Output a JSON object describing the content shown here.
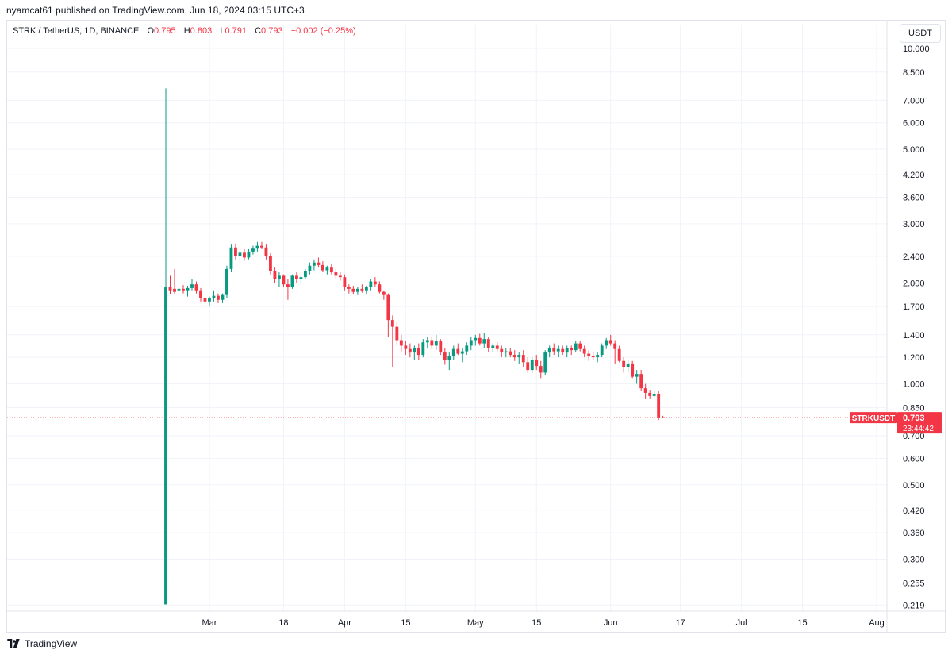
{
  "header": {
    "published": "nyamcat61 published on TradingView.com, Jun 18, 2024 03:15 UTC+3"
  },
  "legend": {
    "symbol": "STRK / TetherUS, 1D, BINANCE",
    "o_label": "O",
    "o_value": "0.795",
    "h_label": "H",
    "h_value": "0.803",
    "l_label": "L",
    "l_value": "0.791",
    "c_label": "C",
    "c_value": "0.793",
    "change": "−0.002 (−0.25%)"
  },
  "currency_button": "USDT",
  "price_tag": {
    "symbol": "STRKUSDT",
    "price": "0.793",
    "countdown": "23:44:42"
  },
  "footer": {
    "brand": "TradingView"
  },
  "colors": {
    "up": "#089981",
    "down": "#f23645",
    "grid": "#f0f3fa",
    "text": "#131722"
  },
  "chart_data": {
    "type": "candlestick",
    "y_scale": "log",
    "ylim": [
      0.21,
      10.5
    ],
    "grid": true,
    "y_ticks": [
      "10.000",
      "8.500",
      "7.000",
      "6.000",
      "5.000",
      "4.200",
      "3.600",
      "3.000",
      "2.400",
      "2.000",
      "1.700",
      "1.400",
      "1.200",
      "1.000",
      "0.850",
      "0.700",
      "0.600",
      "0.500",
      "0.420",
      "0.360",
      "0.300",
      "0.255",
      "0.219"
    ],
    "x_ticks": [
      {
        "label": "Mar",
        "date": "2024-03-01"
      },
      {
        "label": "18",
        "date": "2024-03-18"
      },
      {
        "label": "Apr",
        "date": "2024-04-01"
      },
      {
        "label": "15",
        "date": "2024-04-15"
      },
      {
        "label": "May",
        "date": "2024-05-01"
      },
      {
        "label": "15",
        "date": "2024-05-15"
      },
      {
        "label": "Jun",
        "date": "2024-06-01"
      },
      {
        "label": "17",
        "date": "2024-06-17"
      },
      {
        "label": "Jul",
        "date": "2024-07-01"
      },
      {
        "label": "15",
        "date": "2024-07-15"
      },
      {
        "label": "Aug",
        "date": "2024-08-01"
      }
    ],
    "first_date": "2024-02-20",
    "x_end_date": "2024-08-03",
    "candles": [
      [
        0.22,
        7.6,
        0.22,
        1.95
      ],
      [
        1.95,
        2.1,
        1.85,
        1.9
      ],
      [
        1.92,
        2.2,
        1.86,
        1.88
      ],
      [
        1.9,
        2.0,
        1.83,
        1.92
      ],
      [
        1.92,
        1.97,
        1.86,
        1.9
      ],
      [
        1.9,
        1.96,
        1.82,
        1.93
      ],
      [
        1.93,
        2.05,
        1.9,
        1.98
      ],
      [
        1.98,
        2.02,
        1.86,
        1.9
      ],
      [
        1.9,
        1.93,
        1.76,
        1.8
      ],
      [
        1.8,
        1.86,
        1.7,
        1.76
      ],
      [
        1.76,
        1.82,
        1.7,
        1.8
      ],
      [
        1.8,
        1.9,
        1.76,
        1.83
      ],
      [
        1.83,
        1.86,
        1.74,
        1.78
      ],
      [
        1.78,
        1.86,
        1.74,
        1.84
      ],
      [
        1.84,
        2.25,
        1.8,
        2.2
      ],
      [
        2.2,
        2.6,
        2.15,
        2.55
      ],
      [
        2.55,
        2.62,
        2.35,
        2.4
      ],
      [
        2.4,
        2.5,
        2.3,
        2.46
      ],
      [
        2.46,
        2.52,
        2.33,
        2.38
      ],
      [
        2.38,
        2.52,
        2.35,
        2.48
      ],
      [
        2.48,
        2.58,
        2.43,
        2.53
      ],
      [
        2.53,
        2.65,
        2.48,
        2.58
      ],
      [
        2.58,
        2.65,
        2.52,
        2.55
      ],
      [
        2.55,
        2.6,
        2.35,
        2.4
      ],
      [
        2.4,
        2.45,
        2.12,
        2.17
      ],
      [
        2.17,
        2.22,
        2.0,
        2.05
      ],
      [
        2.05,
        2.15,
        1.95,
        2.1
      ],
      [
        2.1,
        2.12,
        1.95,
        1.98
      ],
      [
        1.98,
        2.05,
        1.78,
        1.95
      ],
      [
        1.95,
        2.12,
        1.92,
        2.1
      ],
      [
        2.1,
        2.15,
        2.0,
        2.05
      ],
      [
        2.05,
        2.12,
        1.98,
        2.08
      ],
      [
        2.08,
        2.2,
        2.05,
        2.17
      ],
      [
        2.17,
        2.3,
        2.12,
        2.25
      ],
      [
        2.25,
        2.35,
        2.18,
        2.3
      ],
      [
        2.3,
        2.38,
        2.22,
        2.26
      ],
      [
        2.26,
        2.32,
        2.15,
        2.18
      ],
      [
        2.18,
        2.25,
        2.12,
        2.22
      ],
      [
        2.22,
        2.28,
        2.12,
        2.15
      ],
      [
        2.15,
        2.2,
        2.05,
        2.1
      ],
      [
        2.1,
        2.15,
        2.03,
        2.08
      ],
      [
        2.08,
        2.12,
        1.9,
        1.94
      ],
      [
        1.94,
        1.98,
        1.86,
        1.92
      ],
      [
        1.92,
        1.96,
        1.85,
        1.88
      ],
      [
        1.88,
        1.94,
        1.84,
        1.92
      ],
      [
        1.92,
        1.98,
        1.87,
        1.9
      ],
      [
        1.9,
        1.96,
        1.85,
        1.94
      ],
      [
        1.94,
        2.05,
        1.9,
        2.02
      ],
      [
        2.02,
        2.08,
        1.95,
        1.98
      ],
      [
        1.98,
        2.02,
        1.86,
        1.88
      ],
      [
        1.88,
        1.9,
        1.78,
        1.84
      ],
      [
        1.84,
        1.86,
        1.38,
        1.55
      ],
      [
        1.55,
        1.6,
        1.12,
        1.48
      ],
      [
        1.48,
        1.53,
        1.3,
        1.35
      ],
      [
        1.35,
        1.4,
        1.25,
        1.3
      ],
      [
        1.3,
        1.34,
        1.22,
        1.27
      ],
      [
        1.27,
        1.32,
        1.2,
        1.24
      ],
      [
        1.24,
        1.3,
        1.18,
        1.28
      ],
      [
        1.28,
        1.32,
        1.18,
        1.22
      ],
      [
        1.22,
        1.36,
        1.2,
        1.33
      ],
      [
        1.33,
        1.38,
        1.28,
        1.35
      ],
      [
        1.35,
        1.38,
        1.27,
        1.3
      ],
      [
        1.3,
        1.4,
        1.26,
        1.34
      ],
      [
        1.34,
        1.36,
        1.22,
        1.24
      ],
      [
        1.24,
        1.28,
        1.14,
        1.18
      ],
      [
        1.18,
        1.24,
        1.1,
        1.21
      ],
      [
        1.21,
        1.3,
        1.18,
        1.27
      ],
      [
        1.27,
        1.32,
        1.22,
        1.23
      ],
      [
        1.23,
        1.28,
        1.16,
        1.25
      ],
      [
        1.25,
        1.33,
        1.22,
        1.3
      ],
      [
        1.3,
        1.38,
        1.26,
        1.35
      ],
      [
        1.35,
        1.4,
        1.3,
        1.37
      ],
      [
        1.37,
        1.41,
        1.3,
        1.32
      ],
      [
        1.32,
        1.42,
        1.28,
        1.36
      ],
      [
        1.36,
        1.38,
        1.24,
        1.28
      ],
      [
        1.28,
        1.32,
        1.24,
        1.3
      ],
      [
        1.3,
        1.33,
        1.25,
        1.27
      ],
      [
        1.27,
        1.3,
        1.2,
        1.24
      ],
      [
        1.24,
        1.28,
        1.2,
        1.25
      ],
      [
        1.25,
        1.28,
        1.2,
        1.22
      ],
      [
        1.22,
        1.26,
        1.17,
        1.2
      ],
      [
        1.2,
        1.24,
        1.15,
        1.22
      ],
      [
        1.22,
        1.26,
        1.12,
        1.16
      ],
      [
        1.16,
        1.2,
        1.08,
        1.1
      ],
      [
        1.1,
        1.2,
        1.08,
        1.18
      ],
      [
        1.18,
        1.22,
        1.1,
        1.13
      ],
      [
        1.13,
        1.17,
        1.04,
        1.08
      ],
      [
        1.08,
        1.26,
        1.06,
        1.24
      ],
      [
        1.24,
        1.3,
        1.2,
        1.28
      ],
      [
        1.28,
        1.32,
        1.22,
        1.25
      ],
      [
        1.25,
        1.3,
        1.2,
        1.27
      ],
      [
        1.27,
        1.3,
        1.22,
        1.24
      ],
      [
        1.24,
        1.3,
        1.2,
        1.28
      ],
      [
        1.28,
        1.3,
        1.22,
        1.26
      ],
      [
        1.26,
        1.34,
        1.24,
        1.32
      ],
      [
        1.32,
        1.34,
        1.25,
        1.27
      ],
      [
        1.27,
        1.3,
        1.2,
        1.23
      ],
      [
        1.23,
        1.26,
        1.17,
        1.21
      ],
      [
        1.21,
        1.25,
        1.18,
        1.2
      ],
      [
        1.2,
        1.24,
        1.16,
        1.22
      ],
      [
        1.22,
        1.32,
        1.2,
        1.3
      ],
      [
        1.3,
        1.37,
        1.27,
        1.35
      ],
      [
        1.35,
        1.4,
        1.3,
        1.32
      ],
      [
        1.32,
        1.35,
        1.15,
        1.27
      ],
      [
        1.27,
        1.3,
        1.16,
        1.17
      ],
      [
        1.17,
        1.2,
        1.08,
        1.12
      ],
      [
        1.12,
        1.18,
        1.08,
        1.15
      ],
      [
        1.15,
        1.17,
        1.04,
        1.05
      ],
      [
        1.05,
        1.1,
        1.0,
        1.07
      ],
      [
        1.07,
        1.1,
        0.95,
        0.97
      ],
      [
        0.97,
        1.0,
        0.9,
        0.94
      ],
      [
        0.94,
        0.96,
        0.9,
        0.92
      ],
      [
        0.92,
        0.95,
        0.91,
        0.93
      ],
      [
        0.93,
        0.95,
        0.78,
        0.795
      ],
      [
        0.795,
        0.803,
        0.791,
        0.793
      ]
    ]
  }
}
